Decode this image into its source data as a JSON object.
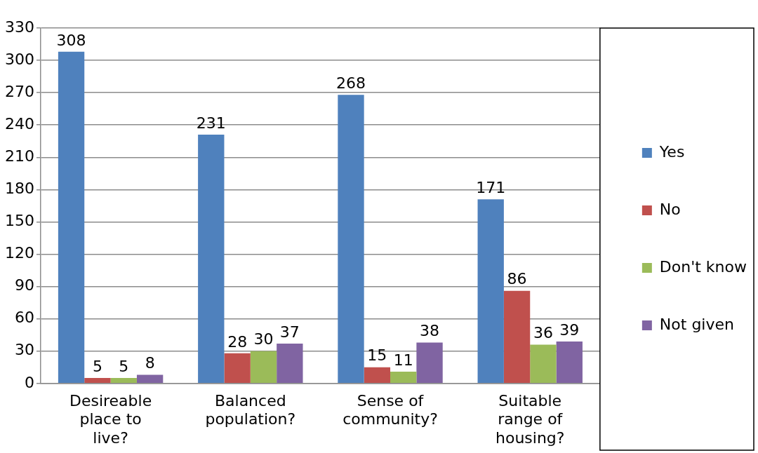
{
  "chart_data": {
    "type": "bar",
    "categories": [
      "Desireable place to live?",
      "Balanced population?",
      "Sense of community?",
      "Suitable range of housing?"
    ],
    "series": [
      {
        "name": "Yes",
        "color": "#4f81bd",
        "values": [
          308,
          231,
          268,
          171
        ]
      },
      {
        "name": "No",
        "color": "#c0504d",
        "values": [
          5,
          28,
          15,
          86
        ]
      },
      {
        "name": "Don't know",
        "color": "#9bbb59",
        "values": [
          5,
          30,
          11,
          36
        ]
      },
      {
        "name": "Not given",
        "color": "#8064a2",
        "values": [
          8,
          37,
          38,
          39
        ]
      }
    ],
    "ylim": [
      0,
      330
    ],
    "yticks": [
      0,
      30,
      60,
      90,
      120,
      150,
      180,
      210,
      240,
      270,
      300,
      330
    ],
    "grid": "y",
    "legend": "right",
    "data_labels": true
  }
}
